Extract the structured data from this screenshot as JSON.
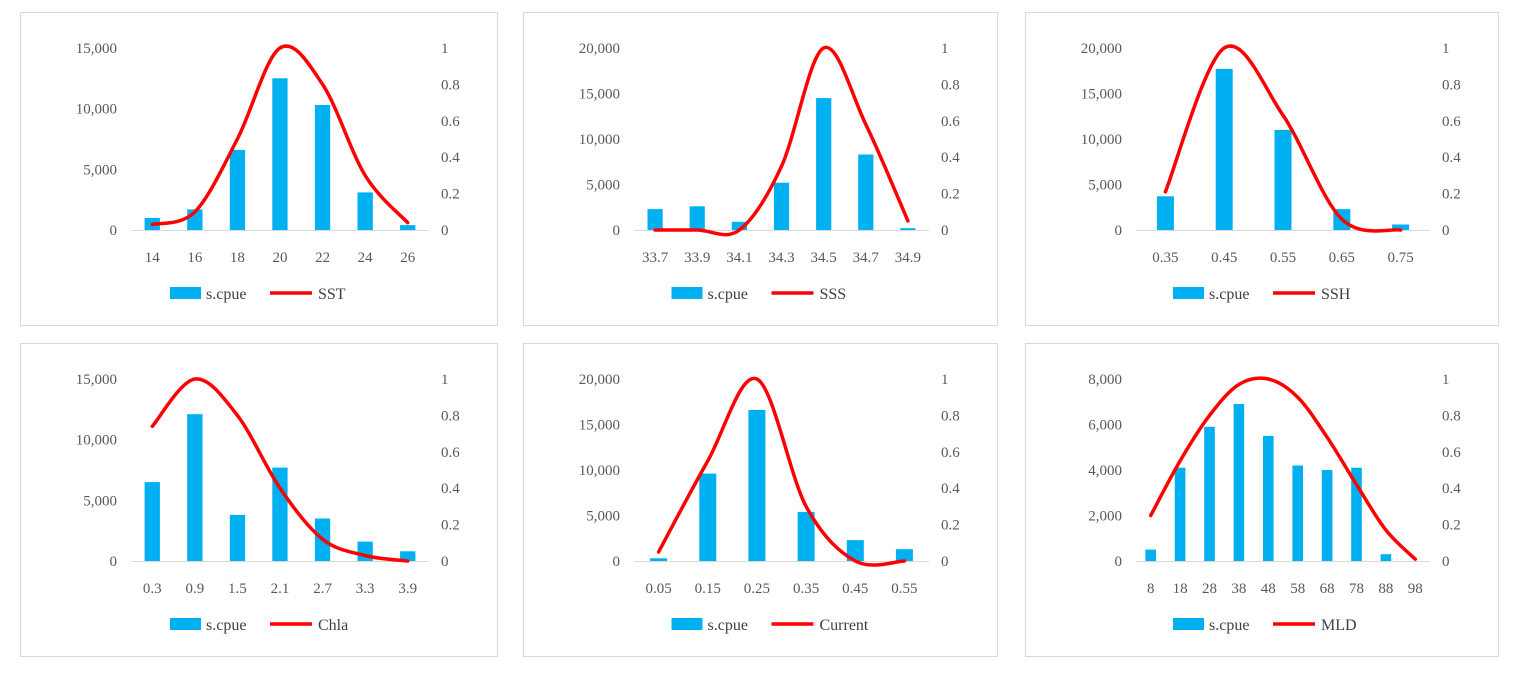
{
  "colors": {
    "bar": "#00b0f0",
    "line": "#ff0000",
    "text": "#595959",
    "border": "#d9d9d9"
  },
  "legend": {
    "bar_label": "s.cpue"
  },
  "y2": {
    "ticks": [
      "0",
      "0.2",
      "0.4",
      "0.6",
      "0.8",
      "1"
    ],
    "ylim": [
      0,
      1
    ]
  },
  "chart_data": [
    {
      "type": "bar+line",
      "panel": "SST",
      "categories": [
        "14",
        "16",
        "18",
        "20",
        "22",
        "24",
        "26"
      ],
      "bar_series": {
        "name": "s.cpue",
        "values": [
          1000,
          1700,
          6600,
          12500,
          10300,
          3100,
          400
        ]
      },
      "line_series": {
        "name": "SST",
        "values": [
          0.03,
          0.1,
          0.5,
          1.0,
          0.8,
          0.3,
          0.04
        ]
      },
      "ylim": [
        0,
        15000
      ],
      "yticks": [
        "0",
        "5,000",
        "10,000",
        "15,000"
      ]
    },
    {
      "type": "bar+line",
      "panel": "SSS",
      "categories": [
        "33.7",
        "33.9",
        "34.1",
        "34.3",
        "34.5",
        "34.7",
        "34.9"
      ],
      "bar_series": {
        "name": "s.cpue",
        "values": [
          2300,
          2600,
          900,
          5200,
          14500,
          8300,
          200
        ]
      },
      "line_series": {
        "name": "SSS",
        "values": [
          0.0,
          0.0,
          0.0,
          0.35,
          1.0,
          0.58,
          0.05
        ]
      },
      "ylim": [
        0,
        20000
      ],
      "yticks": [
        "0",
        "5,000",
        "10,000",
        "15,000",
        "20,000"
      ]
    },
    {
      "type": "bar+line",
      "panel": "SSH",
      "categories": [
        "0.35",
        "0.45",
        "0.55",
        "0.65",
        "0.75"
      ],
      "bar_series": {
        "name": "s.cpue",
        "values": [
          3700,
          17700,
          11000,
          2300,
          600
        ]
      },
      "line_series": {
        "name": "SSH",
        "values": [
          0.21,
          1.0,
          0.63,
          0.06,
          0.0
        ]
      },
      "ylim": [
        0,
        20000
      ],
      "yticks": [
        "0",
        "5,000",
        "10,000",
        "15,000",
        "20,000"
      ]
    },
    {
      "type": "bar+line",
      "panel": "Chla",
      "categories": [
        "0.3",
        "0.9",
        "1.5",
        "2.1",
        "2.7",
        "3.3",
        "3.9"
      ],
      "bar_series": {
        "name": "s.cpue",
        "values": [
          6500,
          12100,
          3800,
          7700,
          3500,
          1600,
          800
        ]
      },
      "line_series": {
        "name": "Chla",
        "values": [
          0.74,
          1.0,
          0.8,
          0.4,
          0.12,
          0.03,
          0.0
        ]
      },
      "ylim": [
        0,
        15000
      ],
      "yticks": [
        "0",
        "5,000",
        "10,000",
        "15,000"
      ]
    },
    {
      "type": "bar+line",
      "panel": "Current",
      "categories": [
        "0.05",
        "0.15",
        "0.25",
        "0.35",
        "0.45",
        "0.55"
      ],
      "bar_series": {
        "name": "s.cpue",
        "values": [
          300,
          9600,
          16600,
          5400,
          2300,
          1300
        ]
      },
      "line_series": {
        "name": "Current",
        "values": [
          0.05,
          0.55,
          1.0,
          0.3,
          0.0,
          0.0
        ]
      },
      "ylim": [
        0,
        20000
      ],
      "yticks": [
        "0",
        "5,000",
        "10,000",
        "15,000",
        "20,000"
      ]
    },
    {
      "type": "bar+line",
      "panel": "MLD",
      "categories": [
        "8",
        "18",
        "28",
        "38",
        "48",
        "58",
        "68",
        "78",
        "88",
        "98"
      ],
      "bar_series": {
        "name": "s.cpue",
        "values": [
          500,
          4100,
          5900,
          6900,
          5500,
          4200,
          4000,
          4100,
          300,
          0
        ]
      },
      "line_series": {
        "name": "MLD",
        "values": [
          0.25,
          0.55,
          0.8,
          0.97,
          1.0,
          0.9,
          0.68,
          0.42,
          0.17,
          0.01
        ]
      },
      "ylim": [
        0,
        8000
      ],
      "yticks": [
        "0",
        "2,000",
        "4,000",
        "6,000",
        "8,000"
      ]
    }
  ]
}
